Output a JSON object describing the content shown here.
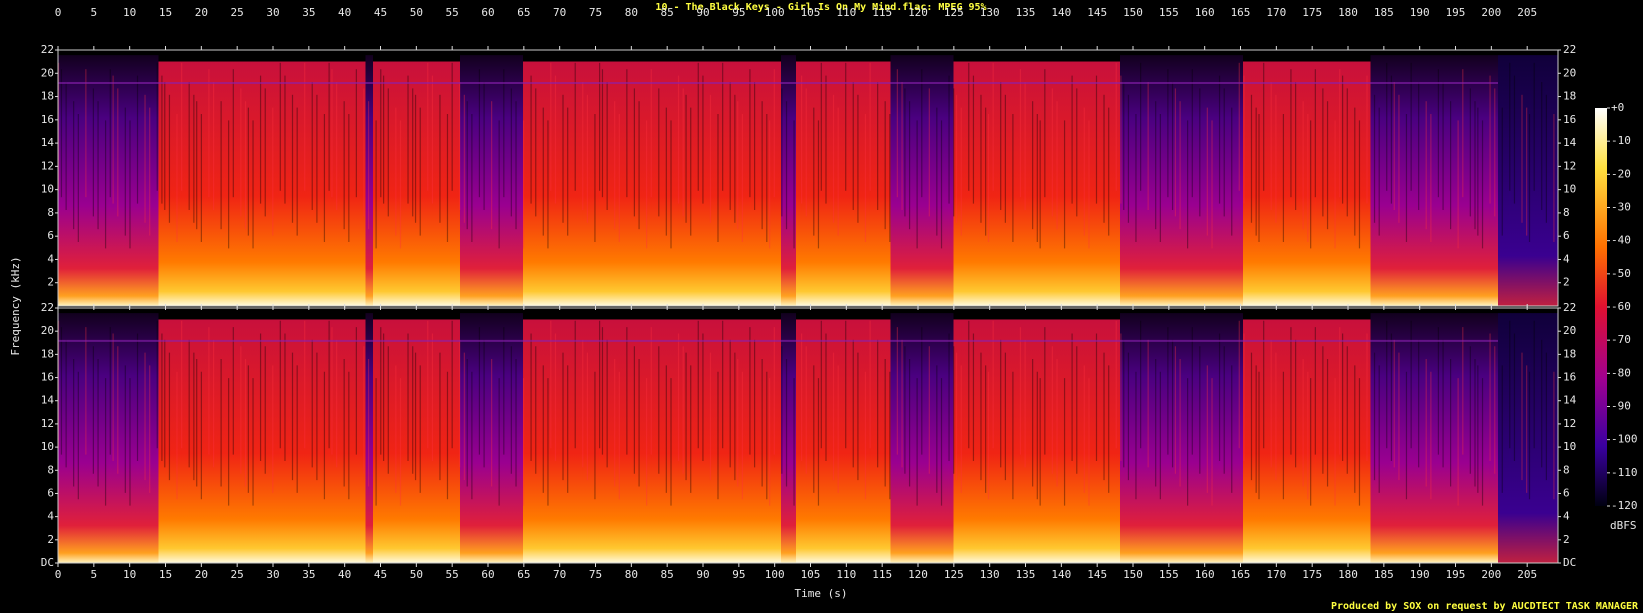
{
  "title": "10 - The Black Keys - Girl Is On My Mind.flac: MPEG 95%",
  "footer": "Produced by SOX on request by AUCDTECT TASK MANAGER",
  "chart_data": {
    "type": "spectrogram",
    "xlabel": "Time (s)",
    "ylabel": "Frequency (kHz)",
    "xlim": [
      0,
      209.3
    ],
    "xticks": [
      0,
      5,
      10,
      15,
      20,
      25,
      30,
      35,
      40,
      45,
      50,
      55,
      60,
      65,
      70,
      75,
      80,
      85,
      90,
      95,
      100,
      105,
      110,
      115,
      120,
      125,
      130,
      135,
      140,
      145,
      150,
      155,
      160,
      165,
      170,
      175,
      180,
      185,
      190,
      195,
      200,
      205
    ],
    "ylim": [
      0,
      22
    ],
    "yticks": [
      {
        "value": 0,
        "label": "DC"
      },
      2,
      4,
      6,
      8,
      10,
      12,
      14,
      16,
      18,
      20,
      22
    ],
    "colorbar": {
      "label": "dBFS",
      "lim": [
        -120,
        0
      ],
      "ticks": [
        {
          "value": 0,
          "label": "+0"
        },
        -10,
        -20,
        -30,
        -40,
        -50,
        -60,
        -70,
        -80,
        -90,
        -100,
        -110,
        -120
      ]
    }
  }
}
